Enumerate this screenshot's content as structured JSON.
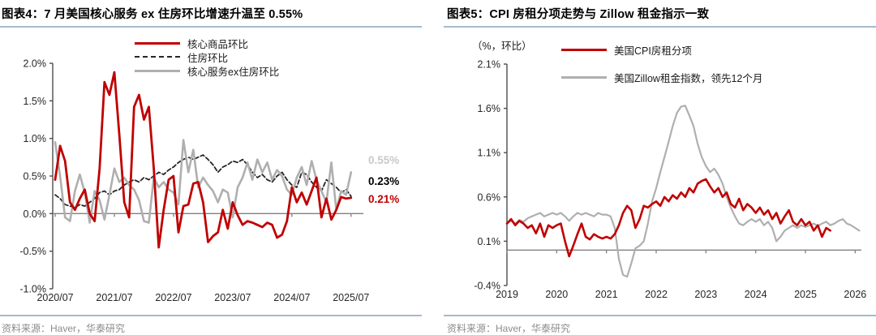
{
  "colors": {
    "accent_red": "#C00000",
    "line_gray": "#AFAFAF",
    "dashed_black": "#262626",
    "axis": "#4d4d4d",
    "zero_line": "#808080",
    "separator_blue": "#A5BACE",
    "source_text": "#8c8c8c",
    "end_label_gray": "#C9C9C9"
  },
  "chart_data": [
    {
      "type": "line",
      "title": "图表4：7 月美国核心服务 ex 住房环比增速升温至 0.55%",
      "source": "资料来源：Haver，华泰研究",
      "x_start": "2020/07",
      "x_freq": "monthly",
      "x_tick_labels": [
        "2020/07",
        "2021/07",
        "2022/07",
        "2023/07",
        "2024/07",
        "2025/07"
      ],
      "x_tick_months": [
        0,
        12,
        24,
        36,
        48,
        60
      ],
      "ylim": [
        -1.0,
        2.0
      ],
      "y_ticks": [
        2.0,
        1.5,
        1.0,
        0.5,
        0.0,
        -0.5,
        -1.0
      ],
      "grid": false,
      "legend_position": "top-center",
      "series": [
        {
          "name": "核心商品环比",
          "color": "#C00000",
          "dash": null,
          "width": 2.8,
          "values": [
            0.45,
            0.9,
            0.7,
            0.15,
            0.05,
            0.2,
            0.32,
            0.0,
            -0.1,
            0.6,
            1.75,
            1.58,
            1.88,
            1.05,
            0.15,
            -0.05,
            1.42,
            1.58,
            1.25,
            1.42,
            0.6,
            -0.45,
            0.05,
            0.45,
            0.5,
            -0.25,
            0.1,
            0.12,
            0.4,
            0.42,
            0.15,
            -0.38,
            -0.3,
            -0.25,
            0.05,
            -0.2,
            0.15,
            -0.02,
            -0.15,
            -0.1,
            -0.12,
            -0.15,
            -0.18,
            -0.12,
            -0.15,
            -0.32,
            -0.28,
            -0.1,
            0.35,
            0.15,
            0.28,
            0.12,
            0.3,
            0.48,
            -0.05,
            0.2,
            -0.08,
            0.05,
            0.22,
            0.2,
            0.21
          ]
        },
        {
          "name": "住房环比",
          "color": "#262626",
          "dash": "5,3",
          "width": 1.8,
          "values": [
            0.25,
            0.2,
            0.12,
            0.1,
            0.08,
            0.12,
            0.1,
            0.15,
            0.2,
            0.28,
            0.3,
            0.25,
            0.3,
            0.32,
            0.38,
            0.42,
            0.45,
            0.42,
            0.48,
            0.45,
            0.5,
            0.55,
            0.52,
            0.58,
            0.62,
            0.68,
            0.72,
            0.75,
            0.72,
            0.75,
            0.78,
            0.72,
            0.65,
            0.55,
            0.62,
            0.65,
            0.7,
            0.68,
            0.72,
            0.65,
            0.55,
            0.48,
            0.52,
            0.45,
            0.42,
            0.5,
            0.55,
            0.45,
            0.38,
            0.35,
            0.55,
            0.52,
            0.42,
            0.35,
            0.3,
            0.45,
            0.4,
            0.35,
            0.28,
            0.32,
            0.23
          ]
        },
        {
          "name": "核心服务ex住房环比",
          "color": "#AFAFAF",
          "dash": null,
          "width": 2.6,
          "values": [
            0.95,
            0.5,
            -0.05,
            -0.1,
            0.3,
            0.52,
            0.28,
            -0.12,
            0.3,
            0.18,
            -0.08,
            0.25,
            0.6,
            0.42,
            0.48,
            0.38,
            0.32,
            0.18,
            -0.1,
            -0.12,
            0.48,
            0.35,
            0.42,
            0.32,
            0.28,
            0.12,
            0.98,
            0.55,
            0.85,
            0.35,
            0.48,
            0.38,
            0.3,
            0.15,
            0.32,
            0.28,
            -0.05,
            0.35,
            0.48,
            0.68,
            0.45,
            0.72,
            0.55,
            0.68,
            0.45,
            0.58,
            0.5,
            0.32,
            0.25,
            0.48,
            0.62,
            0.38,
            0.7,
            0.45,
            0.3,
            0.15,
            0.68,
            0.05,
            0.3,
            0.25,
            0.55
          ]
        }
      ],
      "end_labels": [
        {
          "text": "0.55%",
          "color": "#C9C9C9",
          "at": 0.71
        },
        {
          "text": "0.23%",
          "color": "#000000",
          "at": 0.43
        },
        {
          "text": "0.21%",
          "color": "#C00000",
          "at": 0.19
        }
      ]
    },
    {
      "type": "line",
      "title": "图表5：CPI 房租分项走势与 Zillow 租金指示一致",
      "source": "资料来源：Haver，华泰研究",
      "unit_label": "（%，环比）",
      "x_start": "2019/01",
      "x_freq": "monthly",
      "x_tick_labels": [
        "2019",
        "2020",
        "2021",
        "2022",
        "2023",
        "2024",
        "2025",
        "2026"
      ],
      "x_tick_months": [
        0,
        12,
        24,
        36,
        48,
        60,
        72,
        84
      ],
      "ylim": [
        -0.4,
        2.1
      ],
      "y_ticks": [
        2.1,
        1.6,
        1.1,
        0.6,
        0.1,
        -0.4
      ],
      "grid": false,
      "legend_position": "top-center",
      "series": [
        {
          "name": "美国CPI房租分项",
          "color": "#C00000",
          "dash": null,
          "width": 2.6,
          "values": [
            0.3,
            0.35,
            0.28,
            0.33,
            0.3,
            0.25,
            0.28,
            0.19,
            0.3,
            0.15,
            0.28,
            0.25,
            0.28,
            0.3,
            0.1,
            -0.07,
            0.05,
            0.18,
            0.3,
            0.15,
            0.12,
            0.18,
            0.15,
            0.13,
            0.15,
            0.13,
            0.18,
            0.28,
            0.42,
            0.5,
            0.45,
            0.25,
            0.35,
            0.5,
            0.48,
            0.52,
            0.55,
            0.5,
            0.6,
            0.55,
            0.62,
            0.58,
            0.65,
            0.6,
            0.7,
            0.65,
            0.75,
            0.78,
            0.8,
            0.72,
            0.65,
            0.7,
            0.6,
            0.65,
            0.52,
            0.48,
            0.58,
            0.45,
            0.52,
            0.48,
            0.42,
            0.48,
            0.4,
            0.45,
            0.35,
            0.42,
            0.3,
            0.38,
            0.45,
            0.32,
            0.28,
            0.35,
            0.28,
            0.32,
            0.22,
            0.28,
            0.15,
            0.25,
            0.22
          ]
        },
        {
          "name": "美国Zillow租金指数，领先12个月",
          "color": "#AFAFAF",
          "dash": null,
          "width": 2.2,
          "values": [
            0.3,
            0.33,
            0.3,
            0.34,
            0.32,
            0.36,
            0.38,
            0.4,
            0.42,
            0.38,
            0.4,
            0.42,
            0.4,
            0.42,
            0.38,
            0.33,
            0.38,
            0.42,
            0.4,
            0.42,
            0.4,
            0.38,
            0.42,
            0.4,
            0.4,
            0.38,
            0.25,
            -0.1,
            -0.28,
            -0.3,
            -0.15,
            0.02,
            0.05,
            0.1,
            0.3,
            0.55,
            0.7,
            0.88,
            1.05,
            1.22,
            1.4,
            1.55,
            1.62,
            1.63,
            1.52,
            1.4,
            1.2,
            1.05,
            0.95,
            0.88,
            0.92,
            0.85,
            0.75,
            0.6,
            0.48,
            0.38,
            0.3,
            0.28,
            0.32,
            0.35,
            0.32,
            0.35,
            0.28,
            0.32,
            0.25,
            0.1,
            0.15,
            0.22,
            0.25,
            0.28,
            0.25,
            0.28,
            0.26,
            0.28,
            0.3,
            0.27,
            0.3,
            0.32,
            0.28,
            0.3,
            0.33,
            0.35,
            0.3,
            0.28,
            0.25,
            0.22
          ]
        }
      ],
      "end_labels": []
    }
  ]
}
